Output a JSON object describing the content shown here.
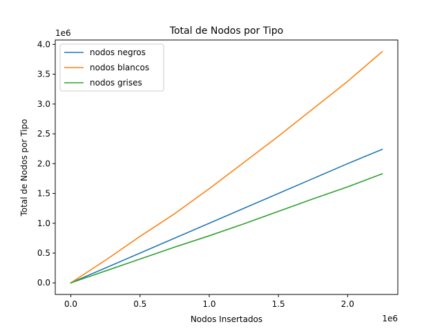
{
  "chart_data": {
    "type": "line",
    "title": "Total de Nodos por Tipo",
    "xlabel": "Nodos Insertados",
    "ylabel": "Total de Nodos por Tipo",
    "x_offset_label": "1e6",
    "y_offset_label": "1e6",
    "xlim": [
      -0.1125,
      2.3625
    ],
    "ylim": [
      -0.194,
      4.074
    ],
    "x_ticks": [
      0.0,
      0.5,
      1.0,
      1.5,
      2.0
    ],
    "x_tick_labels": [
      "0.0",
      "0.5",
      "1.0",
      "1.5",
      "2.0"
    ],
    "y_ticks": [
      0.0,
      0.5,
      1.0,
      1.5,
      2.0,
      2.5,
      3.0,
      3.5,
      4.0
    ],
    "y_tick_labels": [
      "0.0",
      "0.5",
      "1.0",
      "1.5",
      "2.0",
      "2.5",
      "3.0",
      "3.5",
      "4.0"
    ],
    "grid": false,
    "legend_position": "top-left",
    "series": [
      {
        "name": "nodos negros",
        "color": "#1f77b4",
        "x": [
          0,
          0.25,
          0.5,
          0.75,
          1.0,
          1.25,
          1.5,
          1.75,
          2.0,
          2.25
        ],
        "y": [
          0,
          0.25,
          0.5,
          0.75,
          1.0,
          1.25,
          1.5,
          1.75,
          2.0,
          2.24
        ]
      },
      {
        "name": "nodos blancos",
        "color": "#ff7f0e",
        "x": [
          0,
          0.25,
          0.5,
          0.75,
          1.0,
          1.25,
          1.5,
          1.75,
          2.0,
          2.25
        ],
        "y": [
          0,
          0.38,
          0.78,
          1.16,
          1.58,
          2.02,
          2.46,
          2.92,
          3.38,
          3.88
        ]
      },
      {
        "name": "nodos grises",
        "color": "#2ca02c",
        "x": [
          0,
          0.25,
          0.5,
          0.75,
          1.0,
          1.25,
          1.5,
          1.75,
          2.0,
          2.25
        ],
        "y": [
          0,
          0.2,
          0.4,
          0.6,
          0.79,
          0.99,
          1.2,
          1.41,
          1.61,
          1.83
        ]
      }
    ]
  }
}
